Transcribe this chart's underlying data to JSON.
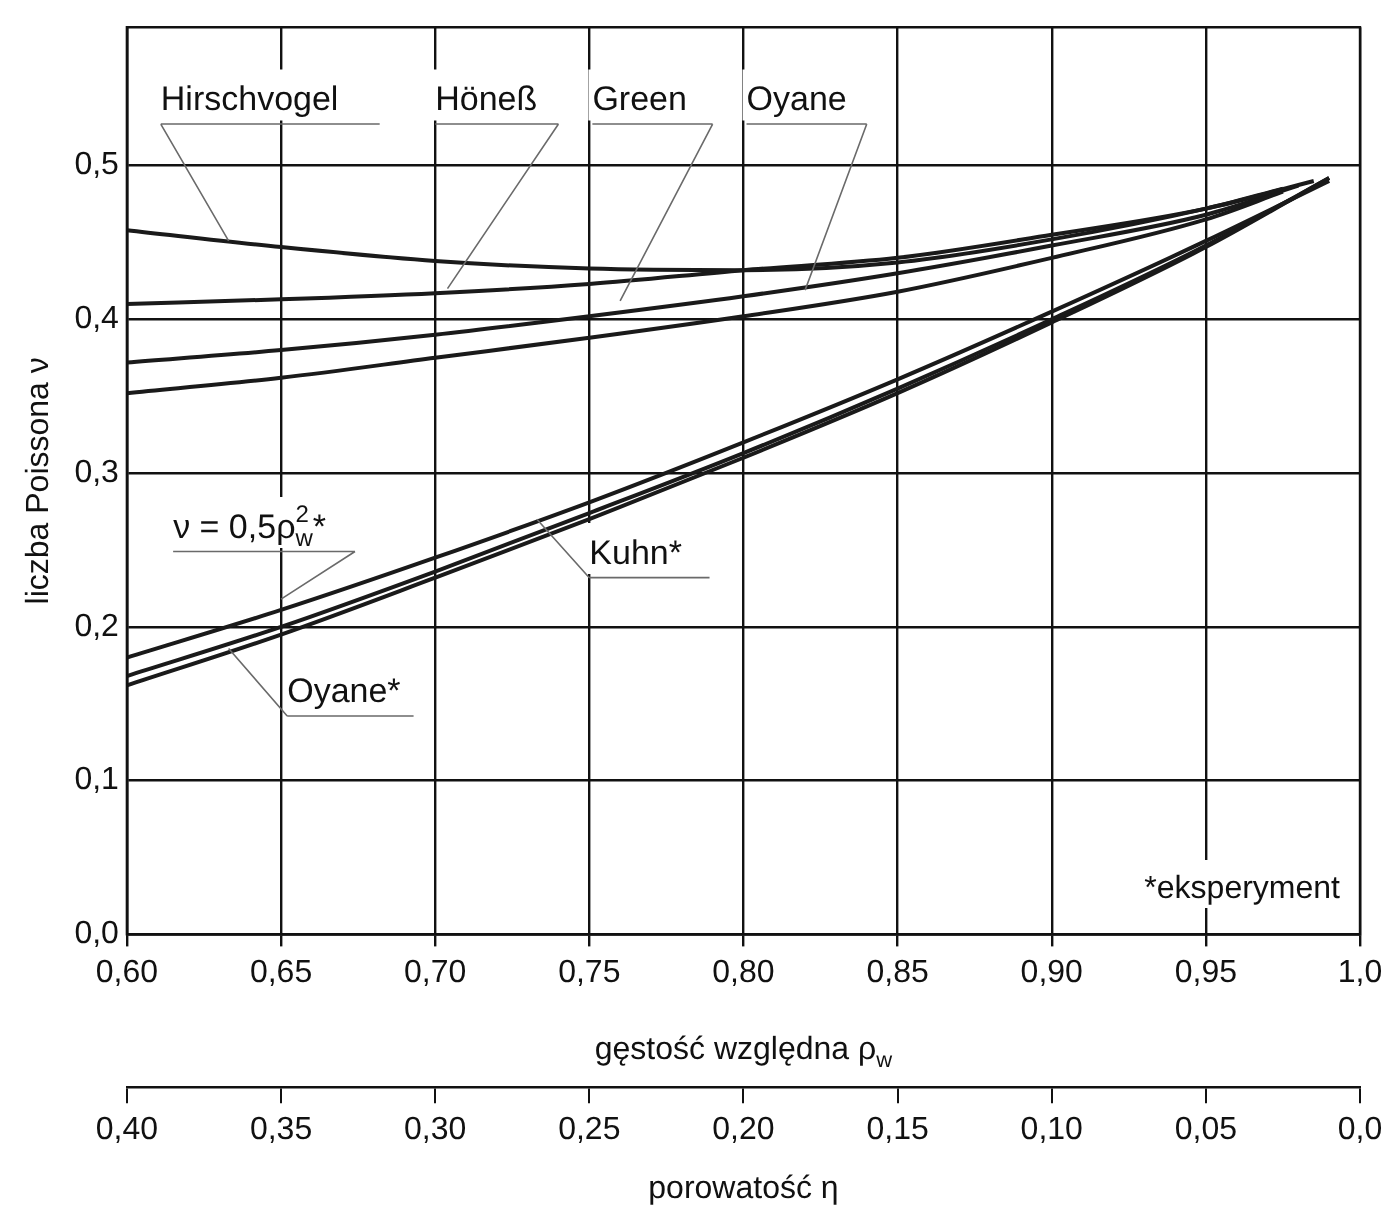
{
  "chart_data": {
    "type": "line",
    "xlabel": "gęstość względna ρ$_{w}$",
    "ylabel": "liczba Poissona ν",
    "x2label": "porowatość η",
    "xlim": [
      0.6,
      1.0
    ],
    "xticks": [
      {
        "value": 0.6,
        "label": "0,60"
      },
      {
        "value": 0.65,
        "label": "0,65"
      },
      {
        "value": 0.7,
        "label": "0,70"
      },
      {
        "value": 0.75,
        "label": "0,75"
      },
      {
        "value": 0.8,
        "label": "0,80"
      },
      {
        "value": 0.85,
        "label": "0,85"
      },
      {
        "value": 0.9,
        "label": "0,90"
      },
      {
        "value": 0.95,
        "label": "0,95"
      },
      {
        "value": 1.0,
        "label": "1,0"
      }
    ],
    "x2lim": [
      0.4,
      0.0
    ],
    "x2ticks": [
      {
        "value": 0.4,
        "label": "0,40"
      },
      {
        "value": 0.35,
        "label": "0,35"
      },
      {
        "value": 0.3,
        "label": "0,30"
      },
      {
        "value": 0.25,
        "label": "0,25"
      },
      {
        "value": 0.2,
        "label": "0,20"
      },
      {
        "value": 0.15,
        "label": "0,15"
      },
      {
        "value": 0.1,
        "label": "0,10"
      },
      {
        "value": 0.05,
        "label": "0,05"
      },
      {
        "value": 0.0,
        "label": "0,0"
      }
    ],
    "ylim": [
      0,
      0.59
    ],
    "yticks": [
      {
        "value": 0,
        "label": "0,0"
      },
      {
        "value": 0.1,
        "label": "0,1"
      },
      {
        "value": 0.2,
        "label": "0,2"
      },
      {
        "value": 0.3,
        "label": "0,3"
      },
      {
        "value": 0.4,
        "label": "0,4"
      },
      {
        "value": 0.5,
        "label": "0,5"
      }
    ],
    "grid": true,
    "legend": false,
    "marker": "none",
    "line_style": "solid",
    "annotations": [
      "*eksperyment"
    ],
    "series": [
      {
        "name": "Hirschvogel",
        "color": "#1a1a1a",
        "x": [
          0.6,
          0.65,
          0.7,
          0.75,
          0.8,
          0.85,
          0.9,
          0.95,
          0.975
        ],
        "values": [
          0.458,
          0.447,
          0.438,
          0.433,
          0.432,
          0.437,
          0.452,
          0.472,
          0.485
        ]
      },
      {
        "name": "Höneß",
        "color": "#1a1a1a",
        "x": [
          0.6,
          0.65,
          0.7,
          0.75,
          0.8,
          0.85,
          0.9,
          0.95,
          0.985
        ],
        "values": [
          0.41,
          0.413,
          0.417,
          0.423,
          0.432,
          0.44,
          0.455,
          0.472,
          0.49
        ]
      },
      {
        "name": "Green",
        "color": "#1a1a1a",
        "x": [
          0.6,
          0.65,
          0.7,
          0.75,
          0.8,
          0.85,
          0.9,
          0.95,
          0.98
        ],
        "values": [
          0.372,
          0.38,
          0.39,
          0.402,
          0.415,
          0.43,
          0.448,
          0.468,
          0.487
        ]
      },
      {
        "name": "Oyane",
        "color": "#1a1a1a",
        "x": [
          0.6,
          0.65,
          0.7,
          0.75,
          0.8,
          0.85,
          0.9,
          0.95,
          0.975
        ],
        "values": [
          0.352,
          0.362,
          0.375,
          0.388,
          0.402,
          0.418,
          0.44,
          0.465,
          0.483
        ]
      },
      {
        "name": "ν = 0,5ρ$_{w}$$^{2}$*",
        "color": "#1a1a1a",
        "x": [
          0.6,
          0.65,
          0.7,
          0.75,
          0.8,
          0.85,
          0.9,
          0.95,
          0.99
        ],
        "values": [
          0.18,
          0.211,
          0.245,
          0.281,
          0.32,
          0.361,
          0.405,
          0.451,
          0.49
        ]
      },
      {
        "name": "Kuhn*",
        "color": "#1a1a1a",
        "x": [
          0.6,
          0.65,
          0.7,
          0.75,
          0.8,
          0.85,
          0.9,
          0.95,
          0.99
        ],
        "values": [
          0.168,
          0.2,
          0.236,
          0.274,
          0.313,
          0.355,
          0.4,
          0.448,
          0.492
        ]
      },
      {
        "name": "Oyane*",
        "color": "#1a1a1a",
        "x": [
          0.6,
          0.65,
          0.7,
          0.75,
          0.8,
          0.85,
          0.9,
          0.95,
          0.99
        ],
        "values": [
          0.162,
          0.195,
          0.232,
          0.27,
          0.31,
          0.352,
          0.398,
          0.447,
          0.492
        ]
      }
    ]
  }
}
